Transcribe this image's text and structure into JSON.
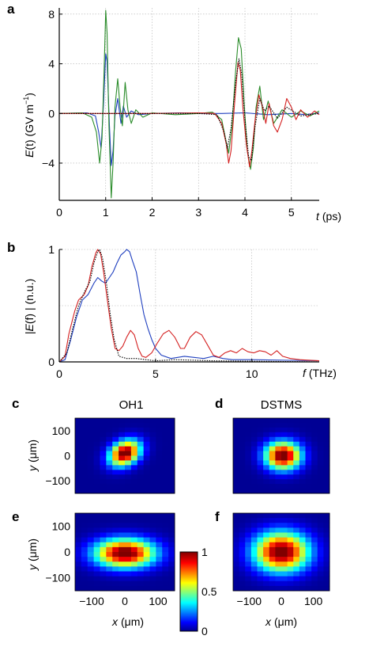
{
  "chart_data": [
    {
      "panel": "a",
      "type": "line",
      "xlabel_var": "t",
      "xlabel_unit": "(ps)",
      "ylabel_var": "E",
      "ylabel_rest": "(t) (GV  m",
      "ylabel_sup": "−1",
      "ylabel_close": ")",
      "xlim": [
        0,
        5.6
      ],
      "ylim": [
        -7,
        8.5
      ],
      "xticks": [
        0,
        1,
        2,
        3,
        4,
        5
      ],
      "yticks": [
        -4,
        0,
        4,
        8
      ],
      "ytick_labels": [
        "−4",
        "0",
        "4",
        "8"
      ],
      "grid": true,
      "series": [
        {
          "color": "#1f3fbf",
          "values": [
            [
              0,
              0
            ],
            [
              0.6,
              0.05
            ],
            [
              0.78,
              -0.2
            ],
            [
              0.85,
              -1.5
            ],
            [
              0.9,
              -2.8
            ],
            [
              0.95,
              0.5
            ],
            [
              1.0,
              4.8
            ],
            [
              1.03,
              4.2
            ],
            [
              1.08,
              -1.0
            ],
            [
              1.12,
              -4.2
            ],
            [
              1.16,
              -3.0
            ],
            [
              1.2,
              -0.2
            ],
            [
              1.26,
              1.2
            ],
            [
              1.33,
              -0.8
            ],
            [
              1.38,
              0.6
            ],
            [
              1.45,
              -0.3
            ],
            [
              1.55,
              0.2
            ],
            [
              1.7,
              -0.1
            ],
            [
              2.0,
              0
            ],
            [
              2.6,
              0.05
            ],
            [
              3.0,
              0
            ],
            [
              3.5,
              0
            ],
            [
              4.0,
              0.05
            ],
            [
              4.5,
              -0.1
            ],
            [
              5.0,
              0
            ],
            [
              5.3,
              -0.1
            ],
            [
              5.6,
              0.05
            ]
          ]
        },
        {
          "color": "#2a8c2a",
          "values": [
            [
              0,
              0
            ],
            [
              0.5,
              0.05
            ],
            [
              0.7,
              -0.3
            ],
            [
              0.8,
              -1.5
            ],
            [
              0.87,
              -4.0
            ],
            [
              0.92,
              -2.0
            ],
            [
              0.97,
              4.0
            ],
            [
              1.0,
              8.3
            ],
            [
              1.03,
              6.5
            ],
            [
              1.07,
              -1.0
            ],
            [
              1.12,
              -6.8
            ],
            [
              1.16,
              -4.0
            ],
            [
              1.2,
              0.5
            ],
            [
              1.26,
              2.8
            ],
            [
              1.31,
              0.5
            ],
            [
              1.36,
              -1.0
            ],
            [
              1.42,
              2.5
            ],
            [
              1.48,
              0.3
            ],
            [
              1.55,
              -0.8
            ],
            [
              1.65,
              0.3
            ],
            [
              1.8,
              -0.3
            ],
            [
              2.0,
              0.05
            ],
            [
              2.5,
              -0.1
            ],
            [
              3.0,
              0
            ],
            [
              3.3,
              0.1
            ],
            [
              3.5,
              -0.5
            ],
            [
              3.58,
              -2.0
            ],
            [
              3.65,
              -3.2
            ],
            [
              3.72,
              -1.0
            ],
            [
              3.8,
              3.5
            ],
            [
              3.86,
              6.1
            ],
            [
              3.92,
              5.2
            ],
            [
              3.98,
              1.0
            ],
            [
              4.05,
              -3.0
            ],
            [
              4.12,
              -4.5
            ],
            [
              4.18,
              -2.8
            ],
            [
              4.24,
              0.5
            ],
            [
              4.32,
              2.2
            ],
            [
              4.4,
              -0.5
            ],
            [
              4.5,
              1.0
            ],
            [
              4.62,
              -0.8
            ],
            [
              4.8,
              0.3
            ],
            [
              5.0,
              -0.3
            ],
            [
              5.2,
              0.2
            ],
            [
              5.4,
              -0.2
            ],
            [
              5.6,
              0.2
            ]
          ]
        },
        {
          "color": "#d42020",
          "values": [
            [
              0,
              0
            ],
            [
              2.0,
              0
            ],
            [
              3.0,
              0.05
            ],
            [
              3.35,
              0
            ],
            [
              3.5,
              -0.8
            ],
            [
              3.6,
              -2.5
            ],
            [
              3.65,
              -4.0
            ],
            [
              3.7,
              -3.0
            ],
            [
              3.78,
              1.0
            ],
            [
              3.85,
              4.1
            ],
            [
              3.9,
              3.5
            ],
            [
              3.96,
              0.3
            ],
            [
              4.03,
              -2.5
            ],
            [
              4.1,
              -4.3
            ],
            [
              4.15,
              -3.0
            ],
            [
              4.22,
              -0.5
            ],
            [
              4.3,
              1.5
            ],
            [
              4.38,
              0.5
            ],
            [
              4.45,
              -0.8
            ],
            [
              4.52,
              0.8
            ],
            [
              4.62,
              -1.0
            ],
            [
              4.7,
              -1.5
            ],
            [
              4.8,
              -0.5
            ],
            [
              4.9,
              1.2
            ],
            [
              5.0,
              0.5
            ],
            [
              5.1,
              -0.5
            ],
            [
              5.2,
              0.3
            ],
            [
              5.35,
              -0.3
            ],
            [
              5.5,
              0.2
            ],
            [
              5.6,
              -0.1
            ]
          ]
        },
        {
          "color": "#000000",
          "dashed": true,
          "values": [
            [
              0,
              0
            ],
            [
              3.0,
              0
            ],
            [
              3.4,
              -0.1
            ],
            [
              3.55,
              -1.5
            ],
            [
              3.62,
              -2.8
            ],
            [
              3.7,
              -1.2
            ],
            [
              3.8,
              2.5
            ],
            [
              3.87,
              4.4
            ],
            [
              3.93,
              3.2
            ],
            [
              4.0,
              -0.5
            ],
            [
              4.08,
              -3.5
            ],
            [
              4.14,
              -3.8
            ],
            [
              4.22,
              -1.0
            ],
            [
              4.32,
              1.2
            ],
            [
              4.42,
              0.2
            ],
            [
              4.52,
              0.6
            ],
            [
              4.7,
              -0.4
            ],
            [
              4.9,
              0.5
            ],
            [
              5.2,
              -0.2
            ],
            [
              5.6,
              0
            ]
          ]
        }
      ]
    },
    {
      "panel": "b",
      "type": "line",
      "xlabel_var": "f",
      "xlabel_unit": "(THz)",
      "ylabel_pre": "|",
      "ylabel_var": "E",
      "ylabel_rest": "(f) | (n.u.)",
      "xlim": [
        0,
        13.5
      ],
      "ylim": [
        0,
        1
      ],
      "xticks": [
        0,
        5,
        10
      ],
      "yticks": [
        0,
        1
      ],
      "gridlines_y": [
        0.5,
        1
      ],
      "grid": true,
      "series": [
        {
          "color": "#1f3fbf",
          "values": [
            [
              0,
              0
            ],
            [
              0.3,
              0.02
            ],
            [
              0.6,
              0.2
            ],
            [
              0.9,
              0.4
            ],
            [
              1.2,
              0.55
            ],
            [
              1.5,
              0.6
            ],
            [
              1.8,
              0.7
            ],
            [
              2.0,
              0.75
            ],
            [
              2.2,
              0.72
            ],
            [
              2.4,
              0.7
            ],
            [
              2.6,
              0.75
            ],
            [
              2.8,
              0.8
            ],
            [
              3.0,
              0.88
            ],
            [
              3.2,
              0.95
            ],
            [
              3.4,
              0.98
            ],
            [
              3.5,
              1.0
            ],
            [
              3.65,
              0.98
            ],
            [
              3.8,
              0.9
            ],
            [
              4.0,
              0.8
            ],
            [
              4.2,
              0.6
            ],
            [
              4.4,
              0.42
            ],
            [
              4.6,
              0.3
            ],
            [
              4.8,
              0.2
            ],
            [
              5.0,
              0.12
            ],
            [
              5.3,
              0.06
            ],
            [
              5.8,
              0.03
            ],
            [
              6.5,
              0.05
            ],
            [
              7.0,
              0.04
            ],
            [
              7.5,
              0.03
            ],
            [
              8.0,
              0.05
            ],
            [
              8.5,
              0.03
            ],
            [
              9.0,
              0.02
            ],
            [
              10,
              0.02
            ],
            [
              13.5,
              0.01
            ]
          ]
        },
        {
          "color": "#d42020",
          "values": [
            [
              0,
              0
            ],
            [
              0.3,
              0.05
            ],
            [
              0.5,
              0.25
            ],
            [
              0.8,
              0.45
            ],
            [
              1.0,
              0.55
            ],
            [
              1.3,
              0.6
            ],
            [
              1.5,
              0.68
            ],
            [
              1.7,
              0.85
            ],
            [
              1.9,
              0.97
            ],
            [
              2.0,
              1.0
            ],
            [
              2.15,
              0.96
            ],
            [
              2.3,
              0.8
            ],
            [
              2.5,
              0.55
            ],
            [
              2.7,
              0.3
            ],
            [
              2.9,
              0.12
            ],
            [
              3.1,
              0.1
            ],
            [
              3.3,
              0.14
            ],
            [
              3.5,
              0.22
            ],
            [
              3.7,
              0.28
            ],
            [
              3.9,
              0.24
            ],
            [
              4.1,
              0.12
            ],
            [
              4.3,
              0.05
            ],
            [
              4.5,
              0.04
            ],
            [
              4.8,
              0.08
            ],
            [
              5.1,
              0.17
            ],
            [
              5.4,
              0.25
            ],
            [
              5.7,
              0.28
            ],
            [
              6.0,
              0.22
            ],
            [
              6.3,
              0.12
            ],
            [
              6.5,
              0.12
            ],
            [
              6.8,
              0.22
            ],
            [
              7.1,
              0.27
            ],
            [
              7.4,
              0.24
            ],
            [
              7.7,
              0.15
            ],
            [
              8.0,
              0.06
            ],
            [
              8.3,
              0.04
            ],
            [
              8.6,
              0.08
            ],
            [
              8.9,
              0.1
            ],
            [
              9.2,
              0.08
            ],
            [
              9.5,
              0.12
            ],
            [
              9.8,
              0.09
            ],
            [
              10.1,
              0.08
            ],
            [
              10.4,
              0.1
            ],
            [
              10.7,
              0.09
            ],
            [
              11.0,
              0.06
            ],
            [
              11.3,
              0.1
            ],
            [
              11.6,
              0.05
            ],
            [
              12.0,
              0.03
            ],
            [
              12.5,
              0.02
            ],
            [
              13.5,
              0.01
            ]
          ]
        },
        {
          "color": "#000000",
          "dashed": true,
          "values": [
            [
              0,
              0
            ],
            [
              0.4,
              0.08
            ],
            [
              0.7,
              0.3
            ],
            [
              1.0,
              0.5
            ],
            [
              1.3,
              0.62
            ],
            [
              1.6,
              0.72
            ],
            [
              1.8,
              0.88
            ],
            [
              2.0,
              0.98
            ],
            [
              2.1,
              1.0
            ],
            [
              2.25,
              0.92
            ],
            [
              2.45,
              0.7
            ],
            [
              2.65,
              0.42
            ],
            [
              2.85,
              0.2
            ],
            [
              3.1,
              0.05
            ],
            [
              3.5,
              0.03
            ],
            [
              4.0,
              0.03
            ],
            [
              4.5,
              0.02
            ],
            [
              5.0,
              0.01
            ],
            [
              6.0,
              0.02
            ],
            [
              8.0,
              0.01
            ],
            [
              13.5,
              0
            ]
          ]
        }
      ]
    },
    {
      "panel": "c-f",
      "type": "heatmap",
      "xlabel_var": "x",
      "xlabel_unit": "(μm)",
      "ylabel_var": "y",
      "ylabel_unit": "(μm)",
      "xticks": [
        -100,
        0,
        100
      ],
      "xtick_labels": [
        "−100",
        "0",
        "100"
      ],
      "yticks": [
        100,
        0,
        -100
      ],
      "ytick_labels": [
        "100",
        "0",
        "−100"
      ],
      "xlim": [
        -150,
        150
      ],
      "ylim": [
        -150,
        150
      ],
      "colorbar": {
        "min": 0,
        "max": 1,
        "ticks": [
          0,
          0.5,
          1
        ],
        "tick_labels": [
          "0",
          "0.5",
          "1"
        ],
        "colormap": "jet"
      },
      "maps": [
        {
          "panel": "c",
          "title": "OH1",
          "center": [
            0,
            10
          ],
          "sigma": [
            28,
            38
          ],
          "rotation": -35
        },
        {
          "panel": "d",
          "title": "DSTMS",
          "center": [
            5,
            0
          ],
          "sigma": [
            38,
            38
          ],
          "rotation": 0
        },
        {
          "panel": "e",
          "title": "",
          "center": [
            0,
            -5
          ],
          "sigma": [
            62,
            38
          ],
          "rotation": 0
        },
        {
          "panel": "f",
          "title": "",
          "center": [
            0,
            0
          ],
          "sigma": [
            58,
            52
          ],
          "rotation": 0
        }
      ]
    }
  ]
}
